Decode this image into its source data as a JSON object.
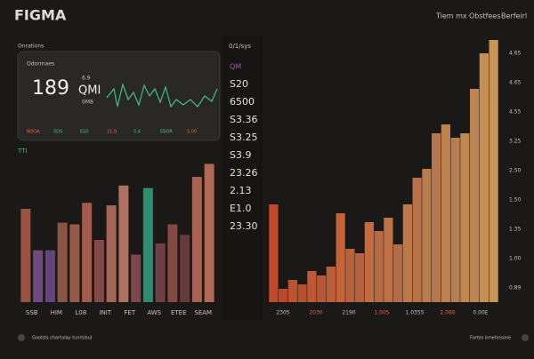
{
  "header": {
    "title": "FIGMA",
    "nav": [
      "Tiem mx",
      "Obstfees",
      "Berfeirl"
    ]
  },
  "panel": {
    "label": "Onrations",
    "card": {
      "label": "Odorrnaes",
      "big": "189",
      "unit": "QMI",
      "sub": [
        "6.9",
        "0M8"
      ],
      "chips": [
        "BOOA",
        "SOS",
        "ES0",
        "15.9",
        "5.4",
        "EBOR",
        "S.00"
      ]
    },
    "section": "TTI"
  },
  "middle": {
    "title": "0/1/sys",
    "labels": [
      "QM",
      "S20",
      "6500",
      "S3.36",
      "S3.25",
      "S3.9",
      "23.26",
      "2.13",
      "E1.0",
      "23.30"
    ]
  },
  "footer": {
    "left": "Goolsts chartolay tunrsibul",
    "right": "Fortes kmehnsone"
  },
  "chart_data": [
    {
      "type": "bar",
      "categories": [
        "SSB",
        null,
        "HIM",
        null,
        "L08",
        null,
        "INIT",
        null,
        "FET",
        null,
        "AWS",
        null,
        "ETEE",
        null,
        "SEAM",
        null
      ],
      "values": [
        108,
        60,
        60,
        92,
        90,
        115,
        72,
        112,
        135,
        55,
        132,
        68,
        90,
        78,
        145,
        160
      ],
      "colors": [
        "#a85a48",
        "#7a4f8a",
        "#6c4a86",
        "#9a5a4a",
        "#a7604e",
        "#b06252",
        "#8e4f4c",
        "#b5705e",
        "#c07a66",
        "#8a4a52",
        "#2f9a7a",
        "#7a4448",
        "#8e5048",
        "#6e3e40",
        "#b86a58",
        "#c0725c"
      ],
      "ylim": [
        0,
        180
      ]
    },
    {
      "type": "bar",
      "values": [
        110,
        15,
        25,
        20,
        35,
        30,
        40,
        100,
        60,
        55,
        90,
        80,
        95,
        65,
        110,
        140,
        150,
        190,
        200,
        185,
        190,
        240,
        280,
        295
      ],
      "colors": [
        "#d4502c",
        "#c9502f",
        "#cf5a33",
        "#c85632",
        "#d06038",
        "#c75e3a",
        "#cc663d",
        "#d86b3c",
        "#c96a42",
        "#c66c45",
        "#d47646",
        "#c9744a",
        "#cf7c4c",
        "#c2754e",
        "#d2844f",
        "#c97c50",
        "#cc8752",
        "#c78253",
        "#d08e55",
        "#c98a57",
        "#d39459",
        "#cf915a",
        "#d99c5b",
        "#dba25e"
      ],
      "ylim": [
        0,
        300
      ],
      "right_labels": [
        "4.65",
        "4.65",
        "4.55",
        "3.25",
        "2.50",
        "1.50",
        "1.35",
        "1.00",
        "0.89"
      ],
      "x_labels": [
        "2305",
        "2030",
        "2190",
        "1.005",
        "1.0355",
        "2.060",
        "0.00E"
      ]
    }
  ]
}
